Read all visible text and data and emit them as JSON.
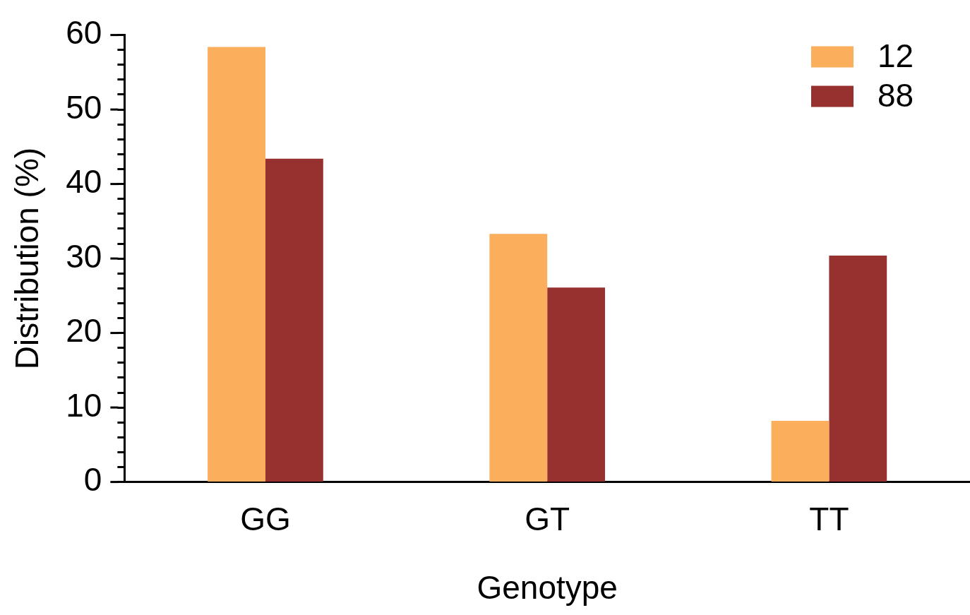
{
  "chart_data": {
    "type": "bar",
    "xlabel": "Genotype",
    "ylabel": "Distribution (%)",
    "categories": [
      "GG",
      "GT",
      "TT"
    ],
    "series": [
      {
        "name": "12",
        "color": "#fbae5c",
        "values": [
          58.4,
          33.3,
          8.2
        ]
      },
      {
        "name": "88",
        "color": "#96312f",
        "values": [
          43.4,
          26.1,
          30.4
        ]
      }
    ],
    "ylim": [
      0,
      60
    ],
    "yticks": [
      0,
      {
        "value": 2,
        "label": null
      },
      {
        "value": 4,
        "label": null
      },
      {
        "value": 6,
        "label": null
      },
      {
        "value": 8,
        "label": null
      },
      10,
      {
        "value": 12,
        "label": null
      },
      {
        "value": 14,
        "label": null
      },
      {
        "value": 16,
        "label": null
      },
      {
        "value": 18,
        "label": null
      },
      20,
      {
        "value": 22,
        "label": null
      },
      {
        "value": 24,
        "label": null
      },
      {
        "value": 26,
        "label": null
      },
      {
        "value": 28,
        "label": null
      },
      30,
      {
        "value": 32,
        "label": null
      },
      {
        "value": 34,
        "label": null
      },
      {
        "value": 36,
        "label": null
      },
      {
        "value": 38,
        "label": null
      },
      40,
      {
        "value": 42,
        "label": null
      },
      {
        "value": 44,
        "label": null
      },
      {
        "value": 46,
        "label": null
      },
      {
        "value": 48,
        "label": null
      },
      50,
      {
        "value": 52,
        "label": null
      },
      {
        "value": 54,
        "label": null
      },
      {
        "value": 56,
        "label": null
      },
      {
        "value": 58,
        "label": null
      },
      60
    ],
    "grid": false,
    "legend": "top right"
  }
}
